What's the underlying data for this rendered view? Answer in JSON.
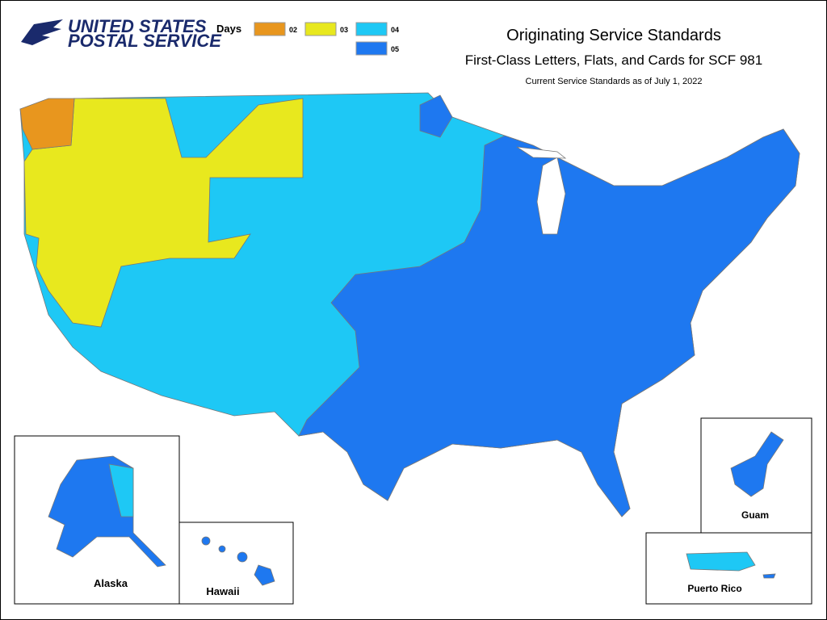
{
  "logo": {
    "line1": "UNITED STATES",
    "line2": "POSTAL SERVICE"
  },
  "legend": {
    "title": "Days",
    "items": [
      {
        "label": "02",
        "color": "#e8961e"
      },
      {
        "label": "03",
        "color": "#e8e81e"
      },
      {
        "label": "04",
        "color": "#1ec8f5"
      },
      {
        "label": "05",
        "color": "#1e78f0"
      }
    ]
  },
  "header": {
    "title": "Originating Service Standards",
    "subtitle": "First-Class Letters, Flats, and Cards for SCF 981",
    "note": "Current Service Standards as of July 1, 2022"
  },
  "insets": [
    {
      "label": "Alaska"
    },
    {
      "label": "Hawaii"
    },
    {
      "label": "Guam"
    },
    {
      "label": "Puerto Rico"
    }
  ]
}
